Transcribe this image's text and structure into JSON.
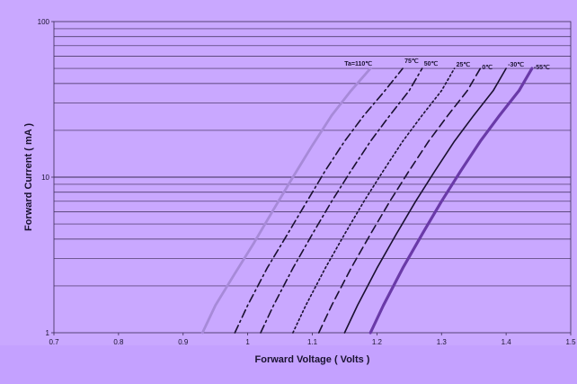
{
  "colors": {
    "plot_bg": "#c9a8ff",
    "bottom_band": "#c4a1ff",
    "outer_bg": "#d7c4ff",
    "grid": "#3a2a55",
    "curve_dark": "#1a1030",
    "curve_light": "#a78ad8",
    "curve_purple": "#6a3aa8"
  },
  "chart_data": {
    "type": "line",
    "title": "",
    "xlabel": "Forward Voltage ( Volts )",
    "ylabel": "Forward Current ( mA )",
    "xscale": "linear",
    "yscale": "log",
    "xlim": [
      0.7,
      1.5
    ],
    "ylim": [
      1,
      100
    ],
    "grid": true,
    "x_ticks": [
      "0.7",
      "0.8",
      "0.9",
      "1",
      "1.1",
      "1.2",
      "1.3",
      "1.4",
      "1.5"
    ],
    "y_ticks": [
      "1",
      "10",
      "100"
    ],
    "series": [
      {
        "name": "Ta=110℃",
        "style": "light",
        "dash": "solid",
        "x": [
          0.93,
          0.95,
          0.98,
          1.01,
          1.04,
          1.07,
          1.1,
          1.13,
          1.16,
          1.19
        ],
        "y": [
          1,
          1.5,
          2.4,
          3.8,
          6.2,
          10,
          16,
          25,
          36,
          50
        ]
      },
      {
        "name": "75℃",
        "style": "dark",
        "dash": "dashdot",
        "x": [
          0.98,
          1.0,
          1.03,
          1.06,
          1.09,
          1.12,
          1.15,
          1.18,
          1.21,
          1.24
        ],
        "y": [
          1,
          1.5,
          2.6,
          4.2,
          6.8,
          11,
          17,
          25,
          35,
          50
        ]
      },
      {
        "name": "50℃",
        "style": "dark",
        "dash": "dashdot",
        "x": [
          1.02,
          1.04,
          1.07,
          1.1,
          1.13,
          1.16,
          1.19,
          1.22,
          1.25,
          1.27
        ],
        "y": [
          1,
          1.5,
          2.6,
          4.3,
          7,
          11,
          17,
          25,
          36,
          50
        ]
      },
      {
        "name": "25℃",
        "style": "dark",
        "dash": "dotted",
        "x": [
          1.07,
          1.09,
          1.12,
          1.15,
          1.18,
          1.21,
          1.24,
          1.27,
          1.3,
          1.32
        ],
        "y": [
          1,
          1.5,
          2.6,
          4.3,
          7,
          11,
          17,
          25,
          36,
          50
        ]
      },
      {
        "name": "0℃",
        "style": "dark",
        "dash": "dashed",
        "x": [
          1.11,
          1.13,
          1.16,
          1.19,
          1.22,
          1.25,
          1.28,
          1.31,
          1.34,
          1.36
        ],
        "y": [
          1,
          1.5,
          2.6,
          4.3,
          7,
          11,
          17,
          25,
          36,
          50
        ]
      },
      {
        "name": "-30℃",
        "style": "dark",
        "dash": "solid",
        "x": [
          1.15,
          1.17,
          1.2,
          1.23,
          1.26,
          1.29,
          1.32,
          1.35,
          1.38,
          1.4
        ],
        "y": [
          1,
          1.5,
          2.6,
          4.3,
          7,
          11,
          17,
          25,
          36,
          50
        ]
      },
      {
        "name": "-55℃",
        "style": "purple",
        "dash": "solid",
        "x": [
          1.19,
          1.21,
          1.24,
          1.27,
          1.3,
          1.33,
          1.36,
          1.39,
          1.42,
          1.44
        ],
        "y": [
          1,
          1.5,
          2.6,
          4.3,
          7,
          11,
          17,
          25,
          36,
          50
        ]
      }
    ]
  }
}
